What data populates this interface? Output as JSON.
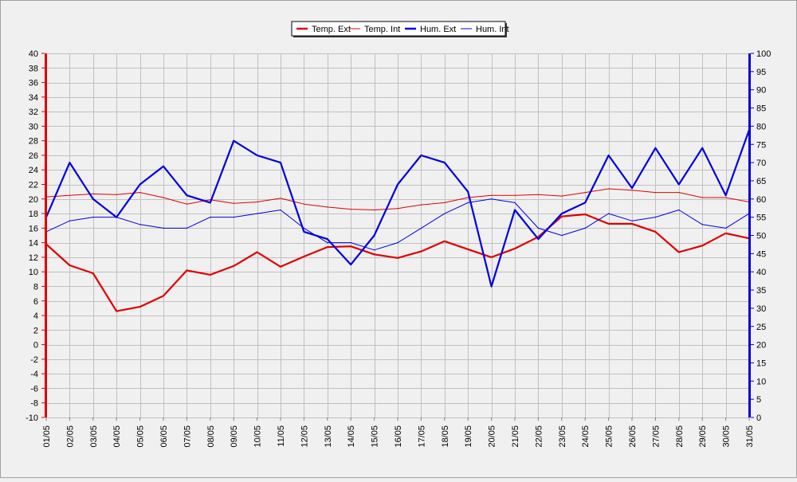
{
  "chart_data": {
    "type": "line",
    "categories": [
      "01/05",
      "02/05",
      "03/05",
      "04/05",
      "05/05",
      "06/05",
      "07/05",
      "08/05",
      "09/05",
      "10/05",
      "11/05",
      "12/05",
      "13/05",
      "14/05",
      "15/05",
      "16/05",
      "17/05",
      "18/05",
      "19/05",
      "20/05",
      "21/05",
      "22/05",
      "23/05",
      "24/05",
      "25/05",
      "26/05",
      "27/05",
      "28/05",
      "29/05",
      "30/05",
      "31/05"
    ],
    "left_axis": {
      "min": -10,
      "max": 40,
      "step": 2,
      "color": "#e00000"
    },
    "right_axis": {
      "min": 0,
      "max": 100,
      "step": 5,
      "color": "#0000e0"
    },
    "grid": true,
    "legend_position": "top-center",
    "series": [
      {
        "name": "Temp. Ext",
        "axis": "left",
        "color": "#e00000",
        "thick": true,
        "values": [
          13.8,
          10.9,
          9.8,
          4.6,
          5.2,
          6.7,
          10.2,
          9.6,
          10.8,
          12.7,
          10.7,
          12.1,
          13.4,
          13.5,
          12.4,
          11.9,
          12.8,
          14.2,
          13.1,
          12.0,
          13.2,
          14.8,
          17.6,
          17.9,
          16.6,
          16.6,
          15.5,
          12.7,
          13.6,
          15.3,
          14.6
        ]
      },
      {
        "name": "Temp. Int",
        "axis": "left",
        "color": "#e00000",
        "thick": false,
        "values": [
          20.3,
          20.5,
          20.7,
          20.6,
          20.9,
          20.2,
          19.3,
          19.9,
          19.4,
          19.6,
          20.1,
          19.3,
          18.9,
          18.6,
          18.5,
          18.7,
          19.2,
          19.5,
          20.2,
          20.5,
          20.5,
          20.6,
          20.4,
          20.9,
          21.4,
          21.2,
          20.9,
          20.9,
          20.2,
          20.2,
          19.6
        ]
      },
      {
        "name": "Hum. Ext",
        "axis": "right",
        "color": "#0000e0",
        "thick": true,
        "values": [
          55,
          70,
          60,
          55,
          64,
          69,
          61,
          59,
          76,
          72,
          70,
          51,
          49,
          42,
          50,
          64,
          72,
          70,
          62,
          36,
          57,
          49,
          56,
          59,
          72,
          63,
          74,
          64,
          74,
          61,
          79
        ]
      },
      {
        "name": "Hum. Int",
        "axis": "right",
        "color": "#0000e0",
        "thick": false,
        "values": [
          51,
          54,
          55,
          55,
          53,
          52,
          52,
          55,
          55,
          56,
          57,
          52,
          48,
          48,
          46,
          48,
          52,
          56,
          59,
          60,
          59,
          52,
          50,
          52,
          56,
          54,
          55,
          57,
          53,
          52,
          56
        ]
      }
    ]
  }
}
